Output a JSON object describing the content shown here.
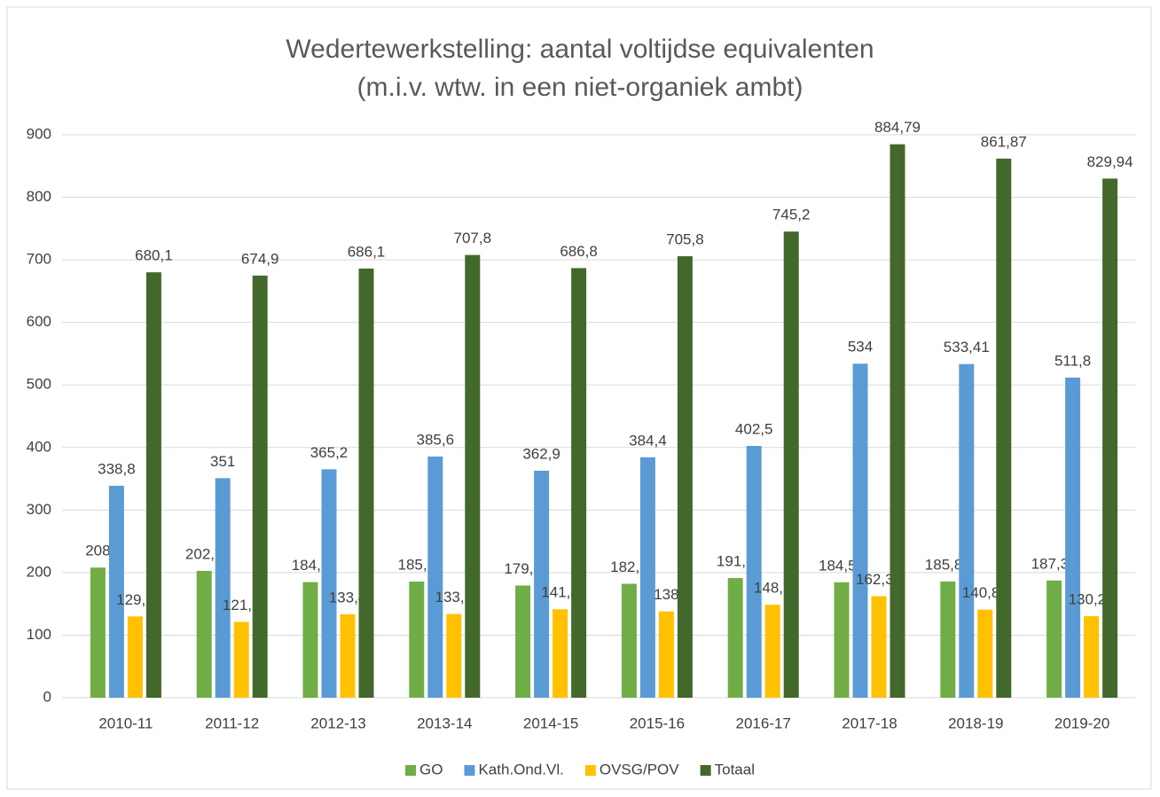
{
  "chart_data": {
    "type": "bar",
    "title": "Wedertewerkstelling: aantal voltijdse equivalenten",
    "subtitle": "(m.i.v. wtw. in een niet-organiek ambt)",
    "categories": [
      "2010-11",
      "2011-12",
      "2012-13",
      "2013-14",
      "2014-15",
      "2015-16",
      "2016-17",
      "2017-18",
      "2018-19",
      "2019-20"
    ],
    "series": [
      {
        "name": "GO",
        "color": "#70ad47",
        "values": [
          208,
          202.7,
          184.8,
          185.7,
          179.3,
          182.1,
          191.3,
          184.57,
          185.85,
          187.36
        ],
        "value_labels": [
          "208",
          "202,7",
          "184,8",
          "185,7",
          "179,3",
          "182,1",
          "191,3",
          "184,57",
          "185,85",
          "187,36"
        ]
      },
      {
        "name": "Kath.Ond.Vl.",
        "color": "#5b9bd5",
        "values": [
          338.8,
          351,
          365.2,
          385.6,
          362.9,
          384.4,
          402.5,
          534,
          533.41,
          511.8
        ],
        "value_labels": [
          "338,8",
          "351",
          "365,2",
          "385,6",
          "362,9",
          "384,4",
          "402,5",
          "534",
          "533,41",
          "511,8"
        ]
      },
      {
        "name": "OVSG/POV",
        "color": "#ffc000",
        "values": [
          129.9,
          121.2,
          133.4,
          133.8,
          141.4,
          138,
          148.7,
          162.37,
          140.83,
          130.28
        ],
        "value_labels": [
          "129,9",
          "121,2",
          "133,4",
          "133,8",
          "141,4",
          "138",
          "148,7",
          "162,37",
          "140,83",
          "130,28"
        ]
      },
      {
        "name": "Totaal",
        "color": "#43682b",
        "values": [
          680.1,
          674.9,
          686.1,
          707.8,
          686.8,
          705.8,
          745.2,
          884.79,
          861.87,
          829.94
        ],
        "value_labels": [
          "680,1",
          "674,9",
          "686,1",
          "707,8",
          "686,8",
          "705,8",
          "745,2",
          "884,79",
          "861,87",
          "829,94"
        ]
      }
    ],
    "ylim": [
      0,
      900
    ],
    "yticks": [
      0,
      100,
      200,
      300,
      400,
      500,
      600,
      700,
      800,
      900
    ],
    "grid": true,
    "legend": "bottom"
  }
}
